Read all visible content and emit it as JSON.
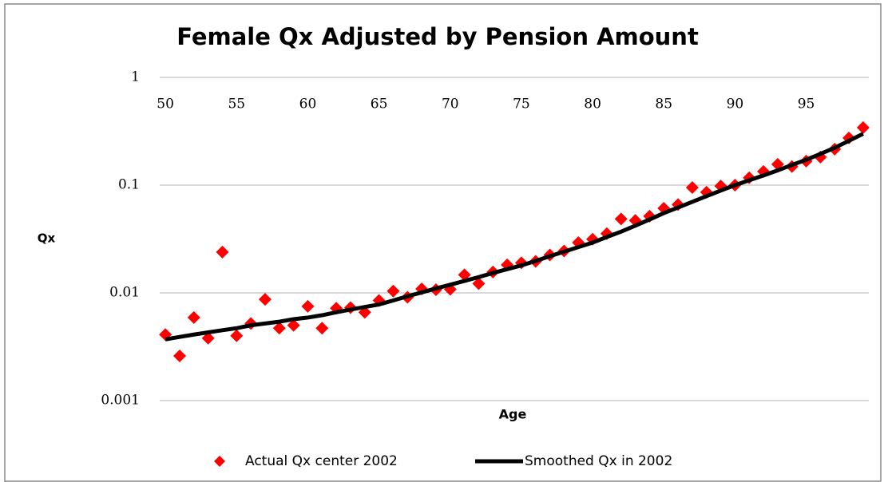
{
  "chart_data": {
    "type": "scatter-line",
    "title": "Female Qx Adjusted by Pension Amount",
    "x_label": "Age",
    "y_label": "Qx",
    "y_scale": "log",
    "grid": true,
    "legend": "bottom",
    "x": [
      50,
      51,
      52,
      53,
      54,
      55,
      56,
      57,
      58,
      59,
      60,
      61,
      62,
      63,
      64,
      65,
      66,
      67,
      68,
      69,
      70,
      71,
      72,
      73,
      74,
      75,
      76,
      77,
      78,
      79,
      80,
      81,
      82,
      83,
      84,
      85,
      86,
      87,
      88,
      89,
      90,
      91,
      92,
      93,
      94,
      95,
      96,
      97,
      98,
      99
    ],
    "xlim": [
      49.6,
      99.4
    ],
    "xticks": [
      50,
      55,
      60,
      65,
      70,
      75,
      80,
      85,
      90,
      95
    ],
    "ylim": [
      0.001,
      1
    ],
    "yticks": [
      1,
      0.1,
      0.01,
      0.001
    ],
    "series": [
      {
        "name": "Actual Qx center 2002",
        "color": "#ff0000",
        "marker": "diamond",
        "values": [
          0.0041,
          0.0026,
          0.0059,
          0.0038,
          0.0239,
          0.004,
          0.0052,
          0.0087,
          0.0047,
          0.005,
          0.0075,
          0.0047,
          0.0072,
          0.0073,
          0.0066,
          0.0085,
          0.0104,
          0.0091,
          0.0109,
          0.0107,
          0.0108,
          0.0147,
          0.0122,
          0.0156,
          0.0182,
          0.019,
          0.0196,
          0.0225,
          0.0245,
          0.0293,
          0.0315,
          0.0355,
          0.0485,
          0.047,
          0.0515,
          0.061,
          0.066,
          0.095,
          0.086,
          0.098,
          0.1,
          0.117,
          0.134,
          0.156,
          0.149,
          0.167,
          0.182,
          0.216,
          0.274,
          0.342
        ]
      },
      {
        "name": "Smoothed Qx in 2002",
        "color": "#000000",
        "marker": "line",
        "values": [
          0.0037,
          0.0039,
          0.0041,
          0.0043,
          0.0045,
          0.0047,
          0.005,
          0.0052,
          0.0054,
          0.0057,
          0.0059,
          0.0062,
          0.0066,
          0.007,
          0.0074,
          0.0078,
          0.0085,
          0.0093,
          0.0101,
          0.011,
          0.0119,
          0.0129,
          0.014,
          0.0153,
          0.0166,
          0.018,
          0.0198,
          0.0219,
          0.0241,
          0.0266,
          0.0293,
          0.033,
          0.037,
          0.042,
          0.048,
          0.055,
          0.062,
          0.07,
          0.079,
          0.089,
          0.1,
          0.111,
          0.123,
          0.137,
          0.154,
          0.172,
          0.195,
          0.222,
          0.258,
          0.3
        ]
      }
    ]
  }
}
